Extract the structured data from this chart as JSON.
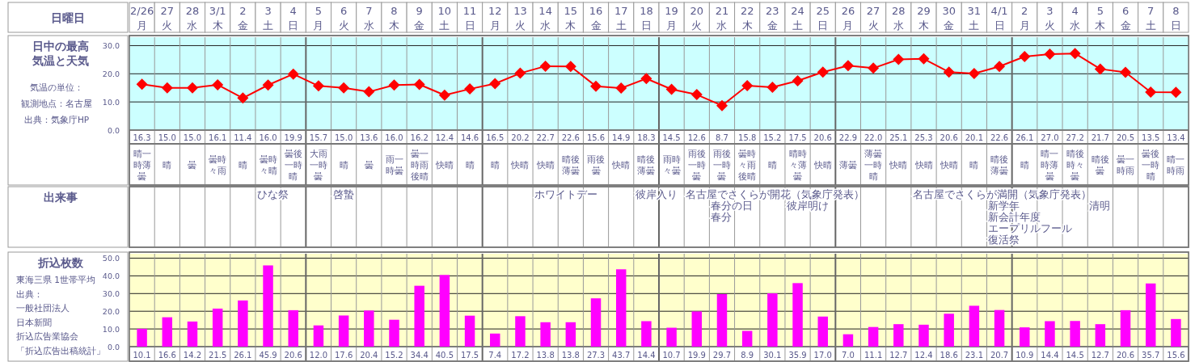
{
  "chart_data": [
    {
      "type": "line",
      "title": "日中の最高気温と天気",
      "xlabel": "日曜日",
      "categories": [
        "2/26\n月",
        "27\n火",
        "28\n水",
        "3/1\n木",
        "2\n金",
        "3\n土",
        "4\n日",
        "5\n月",
        "6\n火",
        "7\n水",
        "8\n木",
        "9\n金",
        "10\n土",
        "11\n日",
        "12\n月",
        "13\n火",
        "14\n水",
        "15\n木",
        "16\n金",
        "17\n土",
        "18\n日",
        "19\n月",
        "20\n火",
        "21\n水",
        "22\n木",
        "23\n金",
        "24\n土",
        "25\n日",
        "26\n月",
        "27\n火",
        "28\n水",
        "29\n木",
        "30\n金",
        "31\n土",
        "4/1\n日",
        "2\n月",
        "3\n火",
        "4\n水",
        "5\n木",
        "6\n金",
        "7\n土",
        "8\n日"
      ],
      "series": [
        {
          "color": "#ff0000",
          "values": [
            16.3,
            15.0,
            15.0,
            16.1,
            11.4,
            16.0,
            19.9,
            15.7,
            15.0,
            13.6,
            16.0,
            16.2,
            12.4,
            14.6,
            16.5,
            20.2,
            22.7,
            22.6,
            15.6,
            14.9,
            18.3,
            14.5,
            12.6,
            8.7,
            15.8,
            15.2,
            17.5,
            20.6,
            22.9,
            22.0,
            25.1,
            25.3,
            20.6,
            20.1,
            22.6,
            26.1,
            27.0,
            27.2,
            21.7,
            20.5,
            13.5,
            13.4
          ],
          "value_labels": [
            "16.3",
            "15.0",
            "15.0",
            "16.1",
            "11.4",
            "16.0",
            "19.9",
            "15.7",
            "15.0",
            "13.6",
            "16.0",
            "16.2",
            "12.4",
            "14.6",
            "16.5",
            "20.2",
            "22.7",
            "22.6",
            "15.6",
            "14.9",
            "18.3",
            "14.5",
            "12.6",
            "8.7",
            "15.8",
            "15.2",
            "17.5",
            "20.6",
            "22.9",
            "22.0",
            "25.1",
            "25.3",
            "20.6",
            "20.1",
            "22.6",
            "26.1",
            "27.0",
            "27.2",
            "21.7",
            "20.5",
            "13.5",
            "13.4"
          ]
        }
      ],
      "ylim": [
        0,
        33
      ],
      "yticks": [
        {
          "value": 0,
          "label": "0.0"
        },
        {
          "value": 10,
          "label": "10.0"
        },
        {
          "value": 20,
          "label": "20.0"
        },
        {
          "value": 30,
          "label": "30.0"
        }
      ],
      "grid": true,
      "marker": "diamond",
      "line_style": "solid",
      "annotations": [
        "気温の単位：",
        "観測地点：名古屋",
        "出典：気象庁HP"
      ]
    },
    {
      "type": "other",
      "annotations": [
        "晴一時薄曇",
        "晴",
        "曇",
        "曇時々雨",
        "晴",
        "曇時々晴",
        "曇後一時晴",
        "大雨一時曇",
        "晴",
        "曇",
        "雨一時曇",
        "曇一時雨後晴",
        "快晴",
        "晴",
        "晴",
        "快晴",
        "快晴",
        "晴後薄曇",
        "雨後曇",
        "快晴",
        "晴後薄曇",
        "雨時々曇",
        "雨後一時曇",
        "雨後一時曇",
        "曇時々雨後晴",
        "晴",
        "晴時々薄曇",
        "快晴",
        "薄曇",
        "薄曇一時晴",
        "快晴",
        "快晴",
        "快晴",
        "晴",
        "晴後薄曇",
        "晴",
        "晴一時薄曇",
        "晴後時々曇",
        "晴後曇",
        "曇一時雨",
        "曇後一時晴",
        "晴一時雨"
      ]
    },
    {
      "type": "other",
      "title": "出来事",
      "annotations": [
        {
          "text": "ひな祭",
          "x": "3\n土"
        },
        {
          "text": "啓蟄",
          "x": "6\n火"
        },
        {
          "text": "ホワイトデー",
          "x": "14\n水"
        },
        {
          "text": "彼岸入り",
          "x": "18\n日"
        },
        {
          "text": "名古屋でさくらが開花（気象庁発表）",
          "x": "20\n火"
        },
        {
          "text": "春分の日",
          "x": "21\n水"
        },
        {
          "text": "春分",
          "x": "21\n水"
        },
        {
          "text": "彼岸明け",
          "x": "24\n土"
        },
        {
          "text": "名古屋でさくらが満開（気象庁発表）",
          "x": "29\n木"
        },
        {
          "text": "新学年",
          "x": "4/1\n日"
        },
        {
          "text": "新会計年度",
          "x": "4/1\n日"
        },
        {
          "text": "エープリルフール",
          "x": "4/1\n日"
        },
        {
          "text": "復活祭",
          "x": "4/1\n日"
        },
        {
          "text": "清明",
          "x": "5\n木"
        }
      ]
    },
    {
      "type": "bar",
      "title": "折込枚数",
      "tick_labels": "y",
      "series": [
        {
          "color": "#ff00ff",
          "values": [
            10.1,
            16.6,
            14.2,
            21.5,
            26.1,
            45.9,
            20.6,
            12.0,
            17.6,
            20.4,
            15.2,
            34.4,
            40.5,
            17.5,
            7.4,
            17.2,
            13.8,
            13.8,
            27.3,
            43.7,
            14.4,
            10.7,
            19.9,
            29.7,
            8.9,
            30.1,
            35.9,
            17.0,
            7.0,
            11.1,
            12.7,
            12.4,
            18.6,
            23.1,
            20.7,
            10.9,
            14.4,
            14.5,
            12.7,
            20.6,
            35.7,
            15.6
          ],
          "value_labels": [
            "10.1",
            "16.6",
            "14.2",
            "21.5",
            "26.1",
            "45.9",
            "20.6",
            "12.0",
            "17.6",
            "20.4",
            "15.2",
            "34.4",
            "40.5",
            "17.5",
            "7.4",
            "17.2",
            "13.8",
            "13.8",
            "27.3",
            "43.7",
            "14.4",
            "10.7",
            "19.9",
            "29.7",
            "8.9",
            "30.1",
            "35.9",
            "17.0",
            "7.0",
            "11.1",
            "12.7",
            "12.4",
            "18.6",
            "23.1",
            "20.7",
            "10.9",
            "14.4",
            "14.5",
            "12.7",
            "20.6",
            "35.7",
            "15.6"
          ]
        }
      ],
      "ylim": [
        0,
        52.5
      ],
      "yticks": [
        {
          "value": 0,
          "label": "0.0"
        },
        {
          "value": 10,
          "label": "10.0"
        },
        {
          "value": 20,
          "label": "20.0"
        },
        {
          "value": 30,
          "label": "30.0"
        },
        {
          "value": 40,
          "label": "40.0"
        },
        {
          "value": 50,
          "label": "50.0"
        }
      ],
      "grid": true,
      "annotations": [
        "東海三県 1世帯平均",
        "出典：",
        "一般社団法人",
        "日本新聞",
        "折込広告業協会",
        "「折込広告出稿統計」"
      ]
    }
  ]
}
